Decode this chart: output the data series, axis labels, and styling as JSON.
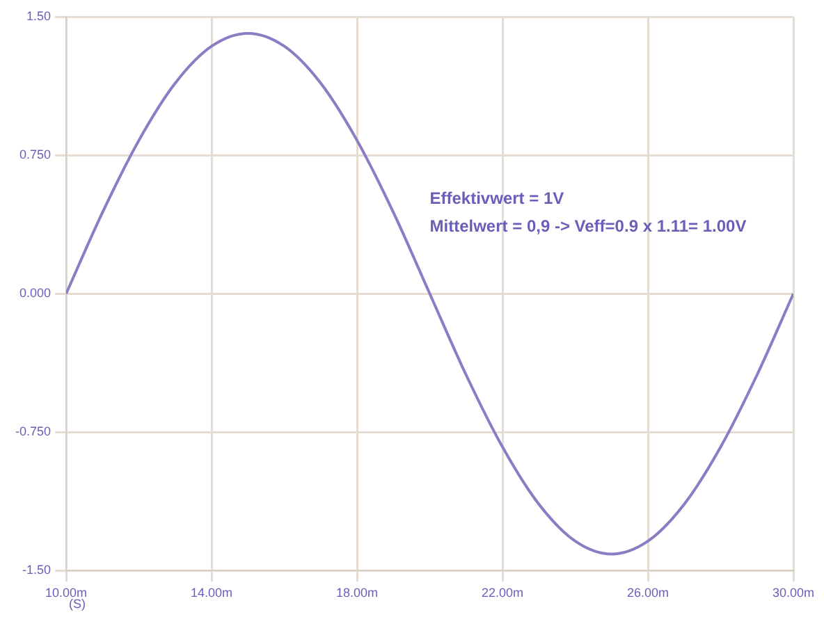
{
  "chart_data": {
    "type": "line",
    "xlabel": "(S)",
    "x": [
      10,
      11,
      12,
      13,
      14,
      15,
      16,
      17,
      18,
      19,
      20,
      21,
      22,
      23,
      24,
      25,
      26,
      27,
      28,
      29,
      30
    ],
    "series": [
      {
        "color": "#8c7cc4",
        "values": [
          0,
          0.44,
          0.83,
          1.14,
          1.34,
          1.41,
          1.34,
          1.14,
          0.83,
          0.44,
          0,
          -0.44,
          -0.83,
          -1.14,
          -1.34,
          -1.41,
          -1.34,
          -1.14,
          -0.83,
          -0.44,
          0
        ]
      }
    ],
    "xlim": [
      10,
      30
    ],
    "xticks": [
      {
        "value": 10,
        "label": "10.00m"
      },
      {
        "value": 14,
        "label": "14.00m"
      },
      {
        "value": 18,
        "label": "18.00m"
      },
      {
        "value": 22,
        "label": "22.00m"
      },
      {
        "value": 26,
        "label": "26.00m"
      },
      {
        "value": 30,
        "label": "30.00m"
      }
    ],
    "ylim": [
      -1.5,
      1.5
    ],
    "yticks": [
      {
        "value": -1.5,
        "label": "-1.50"
      },
      {
        "value": -0.75,
        "label": "-0.750"
      },
      {
        "value": 0,
        "label": "0.000"
      },
      {
        "value": 0.75,
        "label": "0.750"
      },
      {
        "value": 1.5,
        "label": "1.50"
      }
    ],
    "grid": true,
    "legend": false,
    "marker": "none",
    "line_style": "solid",
    "annotations": [
      "Effektivwert = 1V",
      "Mittelwert = 0,9 -> Veff=0.9 x 1.11= 1.00V"
    ]
  }
}
